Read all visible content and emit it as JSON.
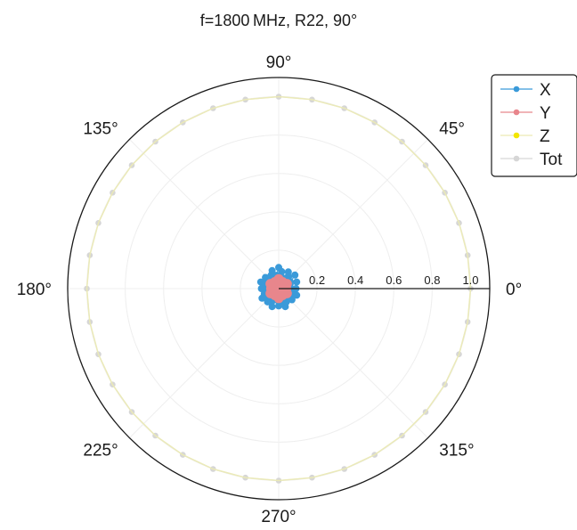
{
  "chart_data": {
    "type": "scatter",
    "coordinate_system": "polar",
    "title": "f=1800 MHz, R22, 90°",
    "angle_ticks": [
      {
        "deg": 0,
        "label": "0°"
      },
      {
        "deg": 45,
        "label": "45°"
      },
      {
        "deg": 90,
        "label": "90°"
      },
      {
        "deg": 135,
        "label": "135°"
      },
      {
        "deg": 180,
        "label": "180°"
      },
      {
        "deg": 225,
        "label": "225°"
      },
      {
        "deg": 270,
        "label": "270°"
      },
      {
        "deg": 315,
        "label": "315°"
      }
    ],
    "radial_ticks": [
      {
        "value": 0.2,
        "label": "0.2"
      },
      {
        "value": 0.4,
        "label": "0.4"
      },
      {
        "value": 0.6,
        "label": "0.6"
      },
      {
        "value": 0.8,
        "label": "0.8"
      },
      {
        "value": 1.0,
        "label": "1.0"
      }
    ],
    "r_lim": [
      0,
      1.1
    ],
    "grid": true,
    "legend_position": "top-right",
    "series": [
      {
        "name": "X",
        "color": "#3a9ad9",
        "points": [
          {
            "theta": 0,
            "r": 0.09
          },
          {
            "theta": 10,
            "r": 0.06
          },
          {
            "theta": 20,
            "r": 0.1
          },
          {
            "theta": 30,
            "r": 0.07
          },
          {
            "theta": 40,
            "r": 0.11
          },
          {
            "theta": 50,
            "r": 0.08
          },
          {
            "theta": 60,
            "r": 0.1
          },
          {
            "theta": 70,
            "r": 0.06
          },
          {
            "theta": 80,
            "r": 0.09
          },
          {
            "theta": 90,
            "r": 0.11
          },
          {
            "theta": 100,
            "r": 0.07
          },
          {
            "theta": 110,
            "r": 0.1
          },
          {
            "theta": 120,
            "r": 0.08
          },
          {
            "theta": 130,
            "r": 0.06
          },
          {
            "theta": 140,
            "r": 0.09
          },
          {
            "theta": 150,
            "r": 0.07
          },
          {
            "theta": 160,
            "r": 0.1
          },
          {
            "theta": 170,
            "r": 0.08
          },
          {
            "theta": 180,
            "r": 0.09
          },
          {
            "theta": 190,
            "r": 0.06
          },
          {
            "theta": 200,
            "r": 0.08
          },
          {
            "theta": 210,
            "r": 0.1
          },
          {
            "theta": 220,
            "r": 0.07
          },
          {
            "theta": 230,
            "r": 0.09
          },
          {
            "theta": 240,
            "r": 0.08
          },
          {
            "theta": 250,
            "r": 0.1
          },
          {
            "theta": 260,
            "r": 0.06
          },
          {
            "theta": 270,
            "r": 0.09
          },
          {
            "theta": 280,
            "r": 0.07
          },
          {
            "theta": 290,
            "r": 0.1
          },
          {
            "theta": 300,
            "r": 0.08
          },
          {
            "theta": 310,
            "r": 0.06
          },
          {
            "theta": 320,
            "r": 0.09
          },
          {
            "theta": 330,
            "r": 0.07
          },
          {
            "theta": 340,
            "r": 0.1
          },
          {
            "theta": 350,
            "r": 0.08
          }
        ]
      },
      {
        "name": "Y",
        "color": "#e8868c",
        "points": [
          {
            "theta": 0,
            "r": 0.04
          },
          {
            "theta": 30,
            "r": 0.05
          },
          {
            "theta": 60,
            "r": 0.04
          },
          {
            "theta": 90,
            "r": 0.05
          },
          {
            "theta": 120,
            "r": 0.04
          },
          {
            "theta": 150,
            "r": 0.05
          },
          {
            "theta": 180,
            "r": 0.04
          },
          {
            "theta": 210,
            "r": 0.05
          },
          {
            "theta": 240,
            "r": 0.04
          },
          {
            "theta": 270,
            "r": 0.05
          },
          {
            "theta": 300,
            "r": 0.04
          },
          {
            "theta": 330,
            "r": 0.05
          },
          {
            "theta": 45,
            "r": 0.02
          },
          {
            "theta": 135,
            "r": 0.02
          },
          {
            "theta": 225,
            "r": 0.02
          },
          {
            "theta": 315,
            "r": 0.02
          }
        ]
      },
      {
        "name": "Z",
        "color": "#f2e600",
        "line_color": "#ecebb4",
        "points": [
          {
            "theta": 0,
            "r": 1.0
          },
          {
            "theta": 10,
            "r": 1.0
          },
          {
            "theta": 20,
            "r": 1.0
          },
          {
            "theta": 30,
            "r": 1.0
          },
          {
            "theta": 40,
            "r": 1.0
          },
          {
            "theta": 50,
            "r": 1.0
          },
          {
            "theta": 60,
            "r": 1.0
          },
          {
            "theta": 70,
            "r": 1.0
          },
          {
            "theta": 80,
            "r": 1.0
          },
          {
            "theta": 90,
            "r": 1.0
          },
          {
            "theta": 100,
            "r": 1.0
          },
          {
            "theta": 110,
            "r": 1.0
          },
          {
            "theta": 120,
            "r": 1.0
          },
          {
            "theta": 130,
            "r": 1.0
          },
          {
            "theta": 140,
            "r": 1.0
          },
          {
            "theta": 150,
            "r": 1.0
          },
          {
            "theta": 160,
            "r": 1.0
          },
          {
            "theta": 170,
            "r": 1.0
          },
          {
            "theta": 180,
            "r": 1.0
          },
          {
            "theta": 190,
            "r": 1.0
          },
          {
            "theta": 200,
            "r": 1.0
          },
          {
            "theta": 210,
            "r": 1.0
          },
          {
            "theta": 220,
            "r": 1.0
          },
          {
            "theta": 230,
            "r": 1.0
          },
          {
            "theta": 240,
            "r": 1.0
          },
          {
            "theta": 250,
            "r": 1.0
          },
          {
            "theta": 260,
            "r": 1.0
          },
          {
            "theta": 270,
            "r": 1.0
          },
          {
            "theta": 280,
            "r": 1.0
          },
          {
            "theta": 290,
            "r": 1.0
          },
          {
            "theta": 300,
            "r": 1.0
          },
          {
            "theta": 310,
            "r": 1.0
          },
          {
            "theta": 320,
            "r": 1.0
          },
          {
            "theta": 330,
            "r": 1.0
          },
          {
            "theta": 340,
            "r": 1.0
          },
          {
            "theta": 350,
            "r": 1.0
          }
        ]
      },
      {
        "name": "Tot",
        "color": "#d6d6d6",
        "points": [
          {
            "theta": 0,
            "r": 1.0
          },
          {
            "theta": 10,
            "r": 1.0
          },
          {
            "theta": 20,
            "r": 1.0
          },
          {
            "theta": 30,
            "r": 1.0
          },
          {
            "theta": 40,
            "r": 1.0
          },
          {
            "theta": 50,
            "r": 1.0
          },
          {
            "theta": 60,
            "r": 1.0
          },
          {
            "theta": 70,
            "r": 1.0
          },
          {
            "theta": 80,
            "r": 1.0
          },
          {
            "theta": 90,
            "r": 1.0
          },
          {
            "theta": 100,
            "r": 1.0
          },
          {
            "theta": 110,
            "r": 1.0
          },
          {
            "theta": 120,
            "r": 1.0
          },
          {
            "theta": 130,
            "r": 1.0
          },
          {
            "theta": 140,
            "r": 1.0
          },
          {
            "theta": 150,
            "r": 1.0
          },
          {
            "theta": 160,
            "r": 1.0
          },
          {
            "theta": 170,
            "r": 1.0
          },
          {
            "theta": 180,
            "r": 1.0
          },
          {
            "theta": 190,
            "r": 1.0
          },
          {
            "theta": 200,
            "r": 1.0
          },
          {
            "theta": 210,
            "r": 1.0
          },
          {
            "theta": 220,
            "r": 1.0
          },
          {
            "theta": 230,
            "r": 1.0
          },
          {
            "theta": 240,
            "r": 1.0
          },
          {
            "theta": 250,
            "r": 1.0
          },
          {
            "theta": 260,
            "r": 1.0
          },
          {
            "theta": 270,
            "r": 1.0
          },
          {
            "theta": 280,
            "r": 1.0
          },
          {
            "theta": 290,
            "r": 1.0
          },
          {
            "theta": 300,
            "r": 1.0
          },
          {
            "theta": 310,
            "r": 1.0
          },
          {
            "theta": 320,
            "r": 1.0
          },
          {
            "theta": 330,
            "r": 1.0
          },
          {
            "theta": 340,
            "r": 1.0
          },
          {
            "theta": 350,
            "r": 1.0
          }
        ]
      }
    ]
  }
}
